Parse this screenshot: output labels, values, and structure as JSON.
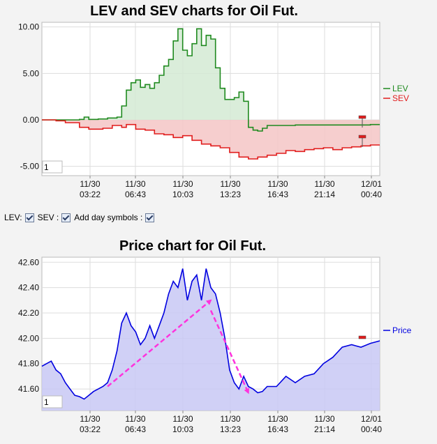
{
  "chart_data": [
    {
      "type": "line",
      "title": "LEV and SEV charts for Oil Fut.",
      "x_tick_labels": [
        {
          "date": "11/30",
          "time": "03:22"
        },
        {
          "date": "11/30",
          "time": "06:43"
        },
        {
          "date": "11/30",
          "time": "10:03"
        },
        {
          "date": "11/30",
          "time": "13:23"
        },
        {
          "date": "11/30",
          "time": "16:43"
        },
        {
          "date": "11/30",
          "time": "21:14"
        },
        {
          "date": "12/01",
          "time": "00:40"
        }
      ],
      "y_ticks": [
        "10.00",
        "5.00",
        "0.00",
        "-5.00"
      ],
      "ylim": [
        -6,
        10.5
      ],
      "legend_placement": "right",
      "box_value": "1",
      "series": [
        {
          "name": "LEV",
          "color": "#1f8a1f",
          "fill": "#d4ead4",
          "points": [
            [
              0,
              0
            ],
            [
              2,
              0
            ],
            [
              4,
              0
            ],
            [
              6,
              0
            ],
            [
              8,
              0.05
            ],
            [
              9,
              0.3
            ],
            [
              10,
              0.05
            ],
            [
              12,
              0.1
            ],
            [
              14,
              0.2
            ],
            [
              16,
              0.3
            ],
            [
              17,
              1.5
            ],
            [
              18,
              3.2
            ],
            [
              19,
              4
            ],
            [
              20,
              4.3
            ],
            [
              21,
              3.5
            ],
            [
              22,
              3.8
            ],
            [
              23,
              3.4
            ],
            [
              24,
              4
            ],
            [
              25,
              4.8
            ],
            [
              26,
              5.8
            ],
            [
              27,
              6.5
            ],
            [
              28,
              8.5
            ],
            [
              29,
              9.8
            ],
            [
              30,
              7.5
            ],
            [
              31,
              6.9
            ],
            [
              32,
              8.2
            ],
            [
              33,
              9.8
            ],
            [
              34,
              8
            ],
            [
              35,
              9.1
            ],
            [
              36,
              8.7
            ],
            [
              37,
              5.6
            ],
            [
              38,
              3.4
            ],
            [
              39,
              2.2
            ],
            [
              40,
              2.2
            ],
            [
              41,
              2.4
            ],
            [
              42,
              3
            ],
            [
              43,
              2
            ],
            [
              44,
              -0.8
            ],
            [
              45,
              -1.1
            ],
            [
              46,
              -1.2
            ],
            [
              47,
              -0.9
            ],
            [
              48,
              -0.6
            ],
            [
              50,
              -0.6
            ],
            [
              54,
              -0.55
            ],
            [
              58,
              -0.55
            ],
            [
              62,
              -0.55
            ],
            [
              66,
              -0.55
            ],
            [
              70,
              -0.5
            ],
            [
              72,
              -0.5
            ]
          ]
        },
        {
          "name": "SEV",
          "color": "#e11d1d",
          "fill": "#f4c6c6",
          "points": [
            [
              0,
              0
            ],
            [
              3,
              -0.1
            ],
            [
              5,
              -0.3
            ],
            [
              8,
              -0.8
            ],
            [
              10,
              -1
            ],
            [
              13,
              -0.9
            ],
            [
              15,
              -0.6
            ],
            [
              17,
              -0.8
            ],
            [
              18,
              -0.5
            ],
            [
              20,
              -1
            ],
            [
              22,
              -1.1
            ],
            [
              24,
              -1.5
            ],
            [
              26,
              -1.6
            ],
            [
              28,
              -1.9
            ],
            [
              30,
              -1.7
            ],
            [
              32,
              -2.2
            ],
            [
              34,
              -2.6
            ],
            [
              36,
              -2.8
            ],
            [
              38,
              -3
            ],
            [
              40,
              -3.5
            ],
            [
              42,
              -4
            ],
            [
              44,
              -4.2
            ],
            [
              46,
              -4
            ],
            [
              48,
              -3.8
            ],
            [
              50,
              -3.6
            ],
            [
              52,
              -3.3
            ],
            [
              54,
              -3.4
            ],
            [
              56,
              -3.2
            ],
            [
              58,
              -3.1
            ],
            [
              60,
              -3
            ],
            [
              62,
              -3.2
            ],
            [
              64,
              -3
            ],
            [
              66,
              -2.9
            ],
            [
              68,
              -2.8
            ],
            [
              70,
              -2.7
            ],
            [
              72,
              -2.7
            ]
          ]
        }
      ]
    },
    {
      "type": "area",
      "title": "Price chart for Oil Fut.",
      "x_tick_labels": [
        {
          "date": "11/30",
          "time": "03:22"
        },
        {
          "date": "11/30",
          "time": "06:43"
        },
        {
          "date": "11/30",
          "time": "10:03"
        },
        {
          "date": "11/30",
          "time": "13:23"
        },
        {
          "date": "11/30",
          "time": "16:43"
        },
        {
          "date": "11/30",
          "time": "21:14"
        },
        {
          "date": "12/01",
          "time": "00:40"
        }
      ],
      "y_ticks": [
        "42.60",
        "42.40",
        "42.20",
        "42.00",
        "41.80",
        "41.60"
      ],
      "ylim": [
        41.43,
        42.64
      ],
      "legend_placement": "right",
      "box_value": "1",
      "series": [
        {
          "name": "Price",
          "color": "#0000e0",
          "fill": "#c8c8f5",
          "points": [
            [
              0,
              41.78
            ],
            [
              1,
              41.8
            ],
            [
              2,
              41.82
            ],
            [
              3,
              41.75
            ],
            [
              4,
              41.72
            ],
            [
              5,
              41.65
            ],
            [
              6,
              41.6
            ],
            [
              7,
              41.55
            ],
            [
              8,
              41.54
            ],
            [
              9,
              41.52
            ],
            [
              10,
              41.55
            ],
            [
              11,
              41.58
            ],
            [
              12,
              41.6
            ],
            [
              13,
              41.62
            ],
            [
              14,
              41.65
            ],
            [
              15,
              41.75
            ],
            [
              16,
              41.9
            ],
            [
              17,
              42.12
            ],
            [
              18,
              42.2
            ],
            [
              19,
              42.1
            ],
            [
              20,
              42.05
            ],
            [
              21,
              41.95
            ],
            [
              22,
              42.0
            ],
            [
              23,
              42.1
            ],
            [
              24,
              42.0
            ],
            [
              25,
              42.1
            ],
            [
              26,
              42.2
            ],
            [
              27,
              42.35
            ],
            [
              28,
              42.45
            ],
            [
              29,
              42.4
            ],
            [
              30,
              42.55
            ],
            [
              31,
              42.3
            ],
            [
              32,
              42.45
            ],
            [
              33,
              42.5
            ],
            [
              34,
              42.3
            ],
            [
              35,
              42.55
            ],
            [
              36,
              42.4
            ],
            [
              37,
              42.35
            ],
            [
              38,
              42.2
            ],
            [
              39,
              42.0
            ],
            [
              40,
              41.75
            ],
            [
              41,
              41.65
            ],
            [
              42,
              41.6
            ],
            [
              43,
              41.7
            ],
            [
              44,
              41.62
            ],
            [
              45,
              41.6
            ],
            [
              46,
              41.57
            ],
            [
              47,
              41.58
            ],
            [
              48,
              41.62
            ],
            [
              50,
              41.62
            ],
            [
              52,
              41.7
            ],
            [
              54,
              41.65
            ],
            [
              56,
              41.7
            ],
            [
              58,
              41.72
            ],
            [
              60,
              41.8
            ],
            [
              62,
              41.85
            ],
            [
              64,
              41.93
            ],
            [
              66,
              41.95
            ],
            [
              68,
              41.93
            ],
            [
              70,
              41.96
            ],
            [
              72,
              41.98
            ]
          ]
        }
      ],
      "arrows": [
        {
          "from": [
            14,
            41.62
          ],
          "to": [
            36,
            42.3
          ],
          "color": "#ff33dd"
        },
        {
          "from": [
            36,
            42.22
          ],
          "to": [
            44,
            41.57
          ],
          "color": "#ff33dd"
        }
      ]
    }
  ],
  "checkboxes": {
    "lev_label": "LEV:",
    "sev_label": "SEV :",
    "day_label": "Add day symbols :"
  }
}
